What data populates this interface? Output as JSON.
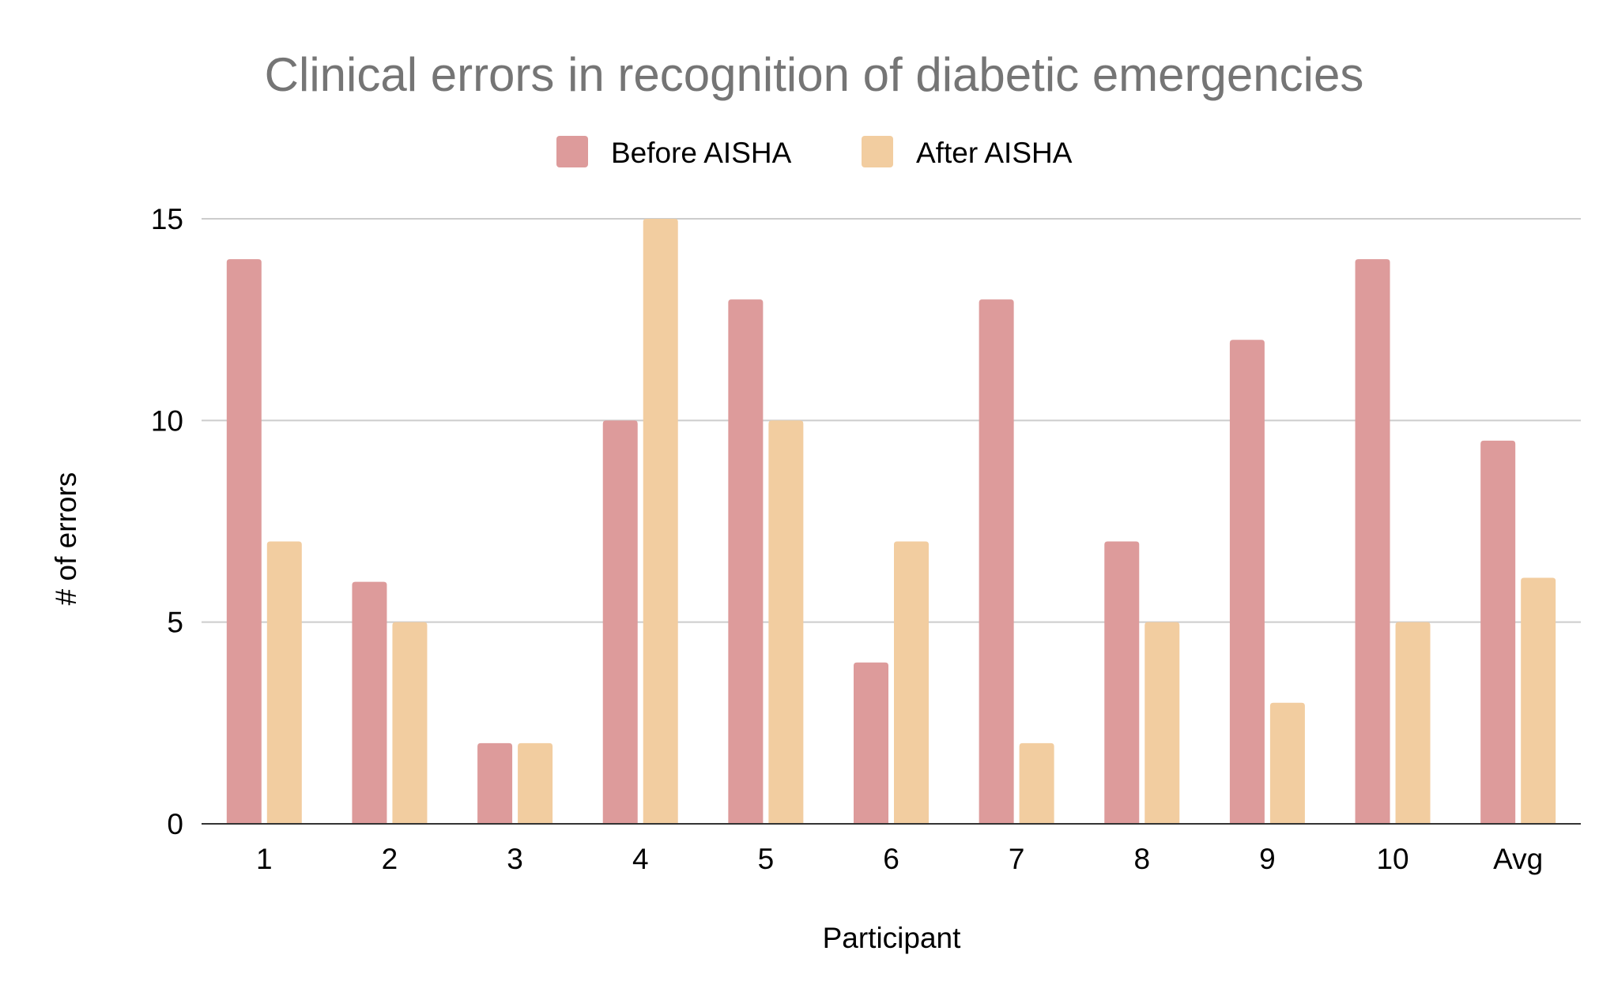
{
  "chart_data": {
    "type": "bar",
    "title": "Clinical errors in recognition of diabetic emergencies",
    "xlabel": "Participant",
    "ylabel": "# of errors",
    "categories": [
      "1",
      "2",
      "3",
      "4",
      "5",
      "6",
      "7",
      "8",
      "9",
      "10",
      "Avg"
    ],
    "series": [
      {
        "name": "Before AISHA",
        "color": "#dd9b9b",
        "values": [
          14,
          6,
          2,
          10,
          13,
          4,
          13,
          7,
          12,
          14,
          9.5
        ]
      },
      {
        "name": "After AISHA",
        "color": "#f2cda0",
        "values": [
          7,
          5,
          2,
          15,
          10,
          7,
          2,
          5,
          3,
          5,
          6.1
        ]
      }
    ],
    "ylim": [
      0,
      15
    ],
    "yticks": [
      "0",
      "5",
      "10",
      "15"
    ],
    "grid": true,
    "legend_position": "top-center",
    "colors": {
      "title": "#757575",
      "text": "#000000",
      "gridline": "#cccccc",
      "axis": "#333333"
    }
  }
}
